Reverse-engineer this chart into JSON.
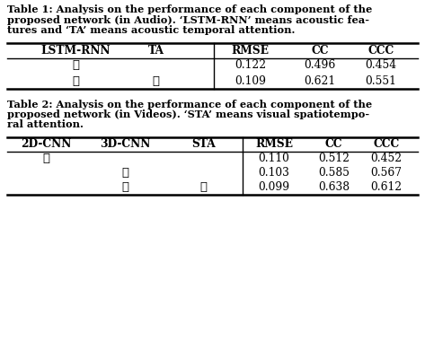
{
  "cap1_lines": [
    "Table 1: Analysis on the performance of each component of the",
    "proposed network (in Audio). ‘LSTM-RNN’ means acoustic fea-",
    "tures and ‘TA’ means acoustic temporal attention."
  ],
  "cap2_lines": [
    "Table 2: Analysis on the performance of each component of the",
    "proposed network (in Videos). ‘STA’ means visual spatiotempo-",
    "ral attention."
  ],
  "table1_headers": [
    "LSTM-RNN",
    "TA",
    "RMSE",
    "CC",
    "CCC"
  ],
  "table1_rows": [
    [
      "✓",
      "",
      "0.122",
      "0.496",
      "0.454"
    ],
    [
      "✓",
      "✓",
      "0.109",
      "0.621",
      "0.551"
    ]
  ],
  "table2_headers": [
    "2D-CNN",
    "3D-CNN",
    "STA",
    "RMSE",
    "CC",
    "CCC"
  ],
  "table2_rows": [
    [
      "✓",
      "",
      "",
      "0.110",
      "0.512",
      "0.452"
    ],
    [
      "",
      "✓",
      "",
      "0.103",
      "0.585",
      "0.567"
    ],
    [
      "",
      "✓",
      "✓",
      "0.099",
      "0.638",
      "0.612"
    ]
  ],
  "bg_color": "#ffffff",
  "text_color": "#000000",
  "caption_fontsize": 8.2,
  "header_fontsize": 8.8,
  "cell_fontsize": 8.8,
  "check_fontsize": 9.5
}
